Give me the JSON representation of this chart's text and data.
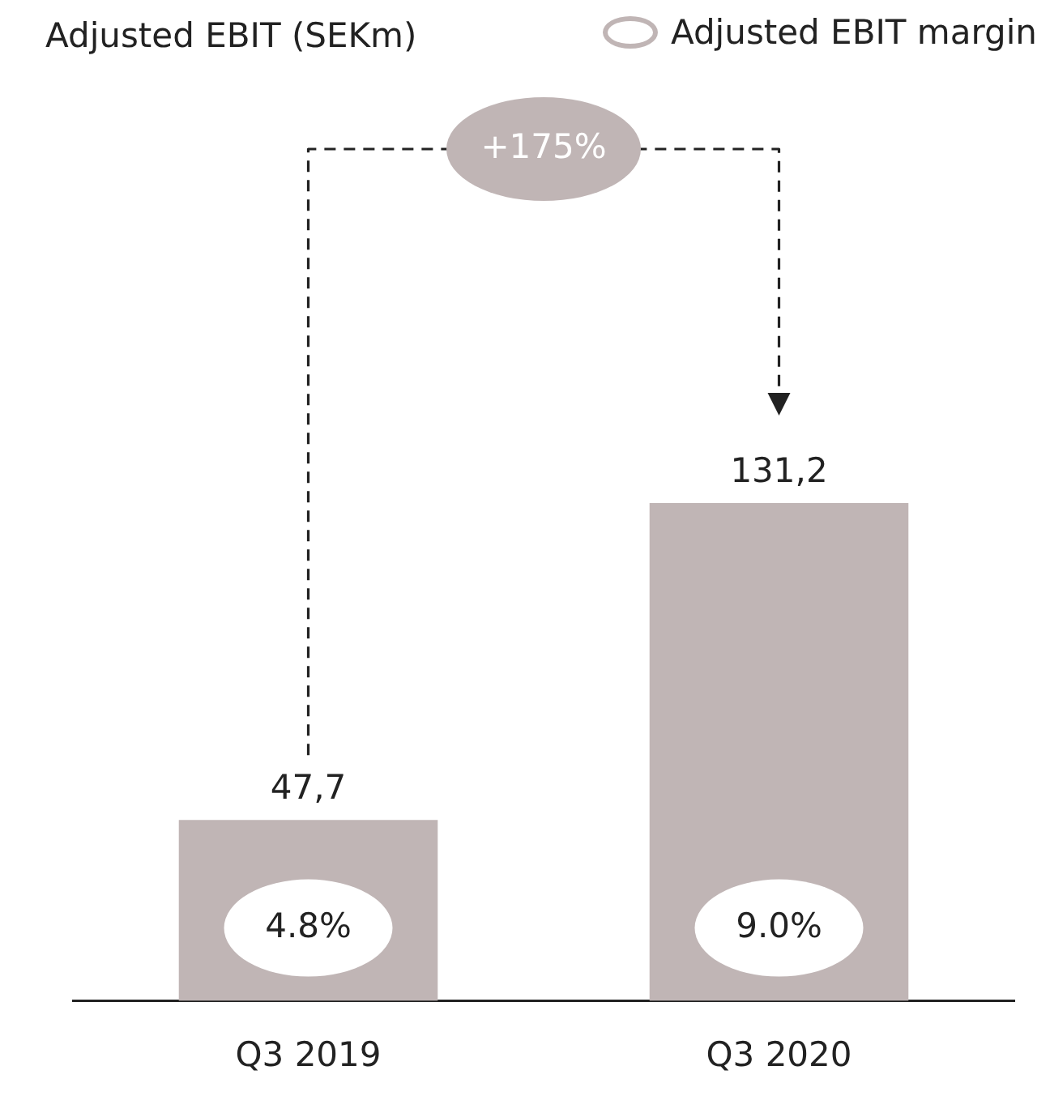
{
  "chart_data": {
    "type": "bar",
    "title": "Adjusted EBIT (SEKm)",
    "legend_title": "Adjusted EBIT margin",
    "categories": [
      "Q3 2019",
      "Q3 2020"
    ],
    "values": [
      47.7,
      131.2
    ],
    "value_labels": [
      "47,7",
      "131,2"
    ],
    "color": "#c0b5b5",
    "annotations": [
      "4.8%",
      "9.0%",
      "+175%"
    ]
  }
}
